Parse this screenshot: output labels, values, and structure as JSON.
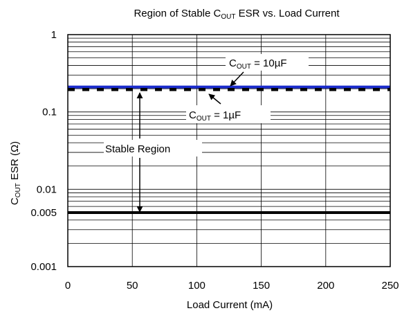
{
  "chart_data": {
    "type": "line",
    "title": {
      "main": "Region of Stable C",
      "sub": "OUT",
      "tail": " ESR vs. Load Current"
    },
    "xlabel": "Load Current (mA)",
    "ylabel": {
      "main": "C",
      "sub": "OUT",
      "tail": " ESR (Ω)"
    },
    "xlim": [
      0,
      250
    ],
    "ylim": [
      0.001,
      1
    ],
    "yscale": "log",
    "x_ticks": [
      0,
      50,
      100,
      150,
      200,
      250
    ],
    "y_ticks": [
      {
        "value": 1,
        "label": "1"
      },
      {
        "value": 0.1,
        "label": "0.1"
      },
      {
        "value": 0.01,
        "label": "0.01"
      },
      {
        "value": 0.005,
        "label": "0.005"
      },
      {
        "value": 0.001,
        "label": "0.001"
      }
    ],
    "grid": true,
    "series": [
      {
        "value": 0.21,
        "x": [
          0,
          250
        ],
        "color": "#1a2bcc",
        "style": "solid"
      },
      {
        "value": 0.195,
        "x": [
          0,
          250
        ],
        "color": "#000000",
        "style": "dashed"
      },
      {
        "value": 0.005,
        "x": [
          0,
          250
        ],
        "color": "#000000",
        "style": "solid"
      }
    ],
    "annotations": {
      "c10": {
        "main": "C",
        "sub": "OUT",
        "tail": " = 10µF"
      },
      "c1": {
        "main": "C",
        "sub": "OUT",
        "tail": " = 1µF"
      },
      "stable": "Stable Region"
    }
  }
}
